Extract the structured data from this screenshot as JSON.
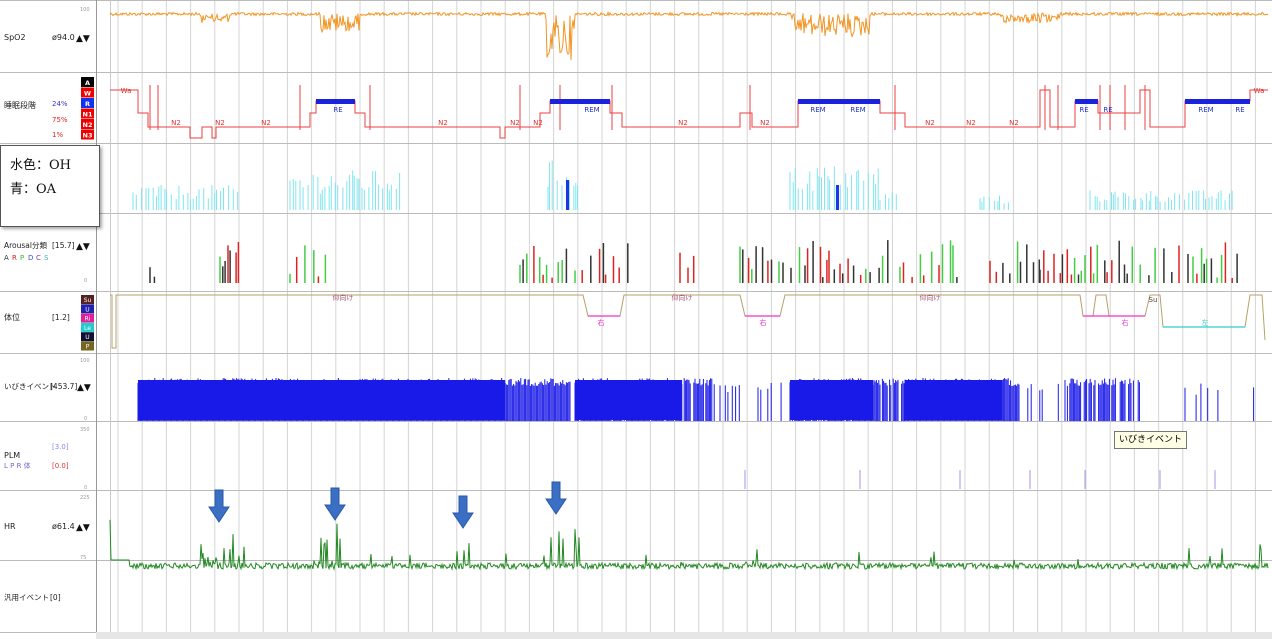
{
  "legend_box": {
    "oh": "水色：OH",
    "oa": "青：OA"
  },
  "tooltip": "いびきイベント",
  "channels": {
    "spo2": {
      "name": "SpO2",
      "value": "ø94.0",
      "scale_top": "100"
    },
    "stage": {
      "name": "睡眠段階",
      "pct1": "24%",
      "pct2": "75%",
      "pct3": "1%",
      "codes": [
        "A",
        "W",
        "R",
        "N1",
        "N2",
        "N3"
      ]
    },
    "arousal": {
      "name": "Arousal分類",
      "value": "[15.7]",
      "codes": [
        "A",
        "R",
        "P",
        "D",
        "C",
        "S"
      ],
      "scale_bottom": "0"
    },
    "pos": {
      "name": "体位",
      "value": "[1.2]",
      "codes": [
        "Su",
        "U",
        "Ri",
        "Le",
        "U",
        "P"
      ]
    },
    "snore": {
      "name": "いびきイベント",
      "value": "[453.7]",
      "scale_top": "100",
      "scale_bottom": "0"
    },
    "plm": {
      "name": "PLM",
      "sub": "L  P  R  体",
      "value1": "[3.0]",
      "value2": "[0.0]",
      "scale_top": "350",
      "scale_bottom": "0"
    },
    "hr": {
      "name": "HR",
      "value": "ø61.4",
      "scale_top": "225",
      "scale_bottom": "75"
    },
    "general": {
      "name": "汎用イベント",
      "value": "[0]"
    }
  },
  "arrow_symbol": "▲▼",
  "chart_data": {
    "type": "line",
    "title": "",
    "series": [
      {
        "channel": "SpO2"
      },
      {
        "channel": "睡眠段階",
        "labels": [
          "Wa",
          "N2",
          "N2",
          "N2",
          "RE",
          "N2",
          "N2",
          "N2",
          "REM",
          "N2",
          "N2",
          "REM",
          "REM",
          "N2",
          "N2",
          "N2",
          "RE",
          "RE",
          "REM",
          "RE",
          "Wa"
        ]
      },
      {
        "channel": "体位",
        "labels": [
          "仰向け",
          "右",
          "仰向け",
          "右",
          "仰向け",
          "右",
          "Su",
          "左"
        ]
      },
      {
        "channel": "いびきイベント"
      },
      {
        "channel": "HR"
      }
    ]
  }
}
